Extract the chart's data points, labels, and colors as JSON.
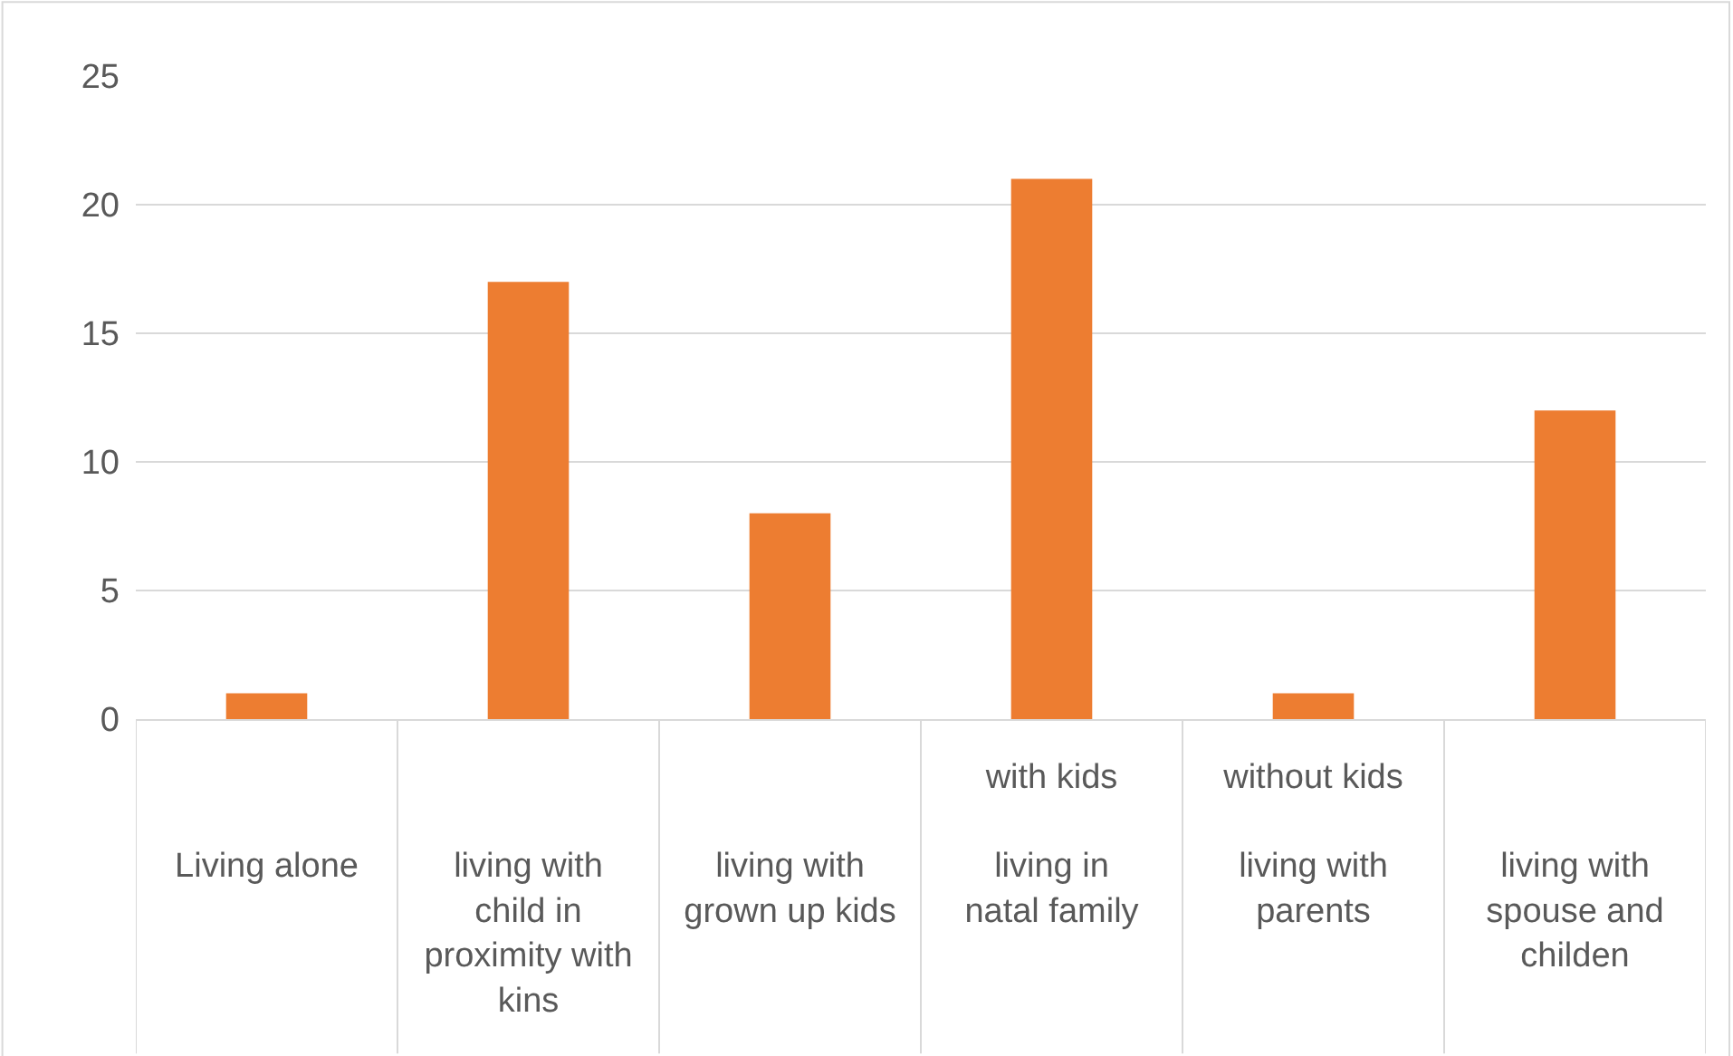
{
  "chart_data": {
    "type": "bar",
    "categories": [
      "Living alone",
      "living with child in proximity with kins",
      "living with grown up kids",
      "with kids\nliving in natal family",
      "without kids\nliving with parents",
      "living with spouse and childen"
    ],
    "values": [
      1,
      17,
      8,
      21,
      1,
      12
    ],
    "color": "#ed7d31",
    "ylim": [
      0,
      25
    ],
    "yticks": [
      0,
      5,
      10,
      15,
      20,
      25
    ],
    "grid": "y"
  }
}
